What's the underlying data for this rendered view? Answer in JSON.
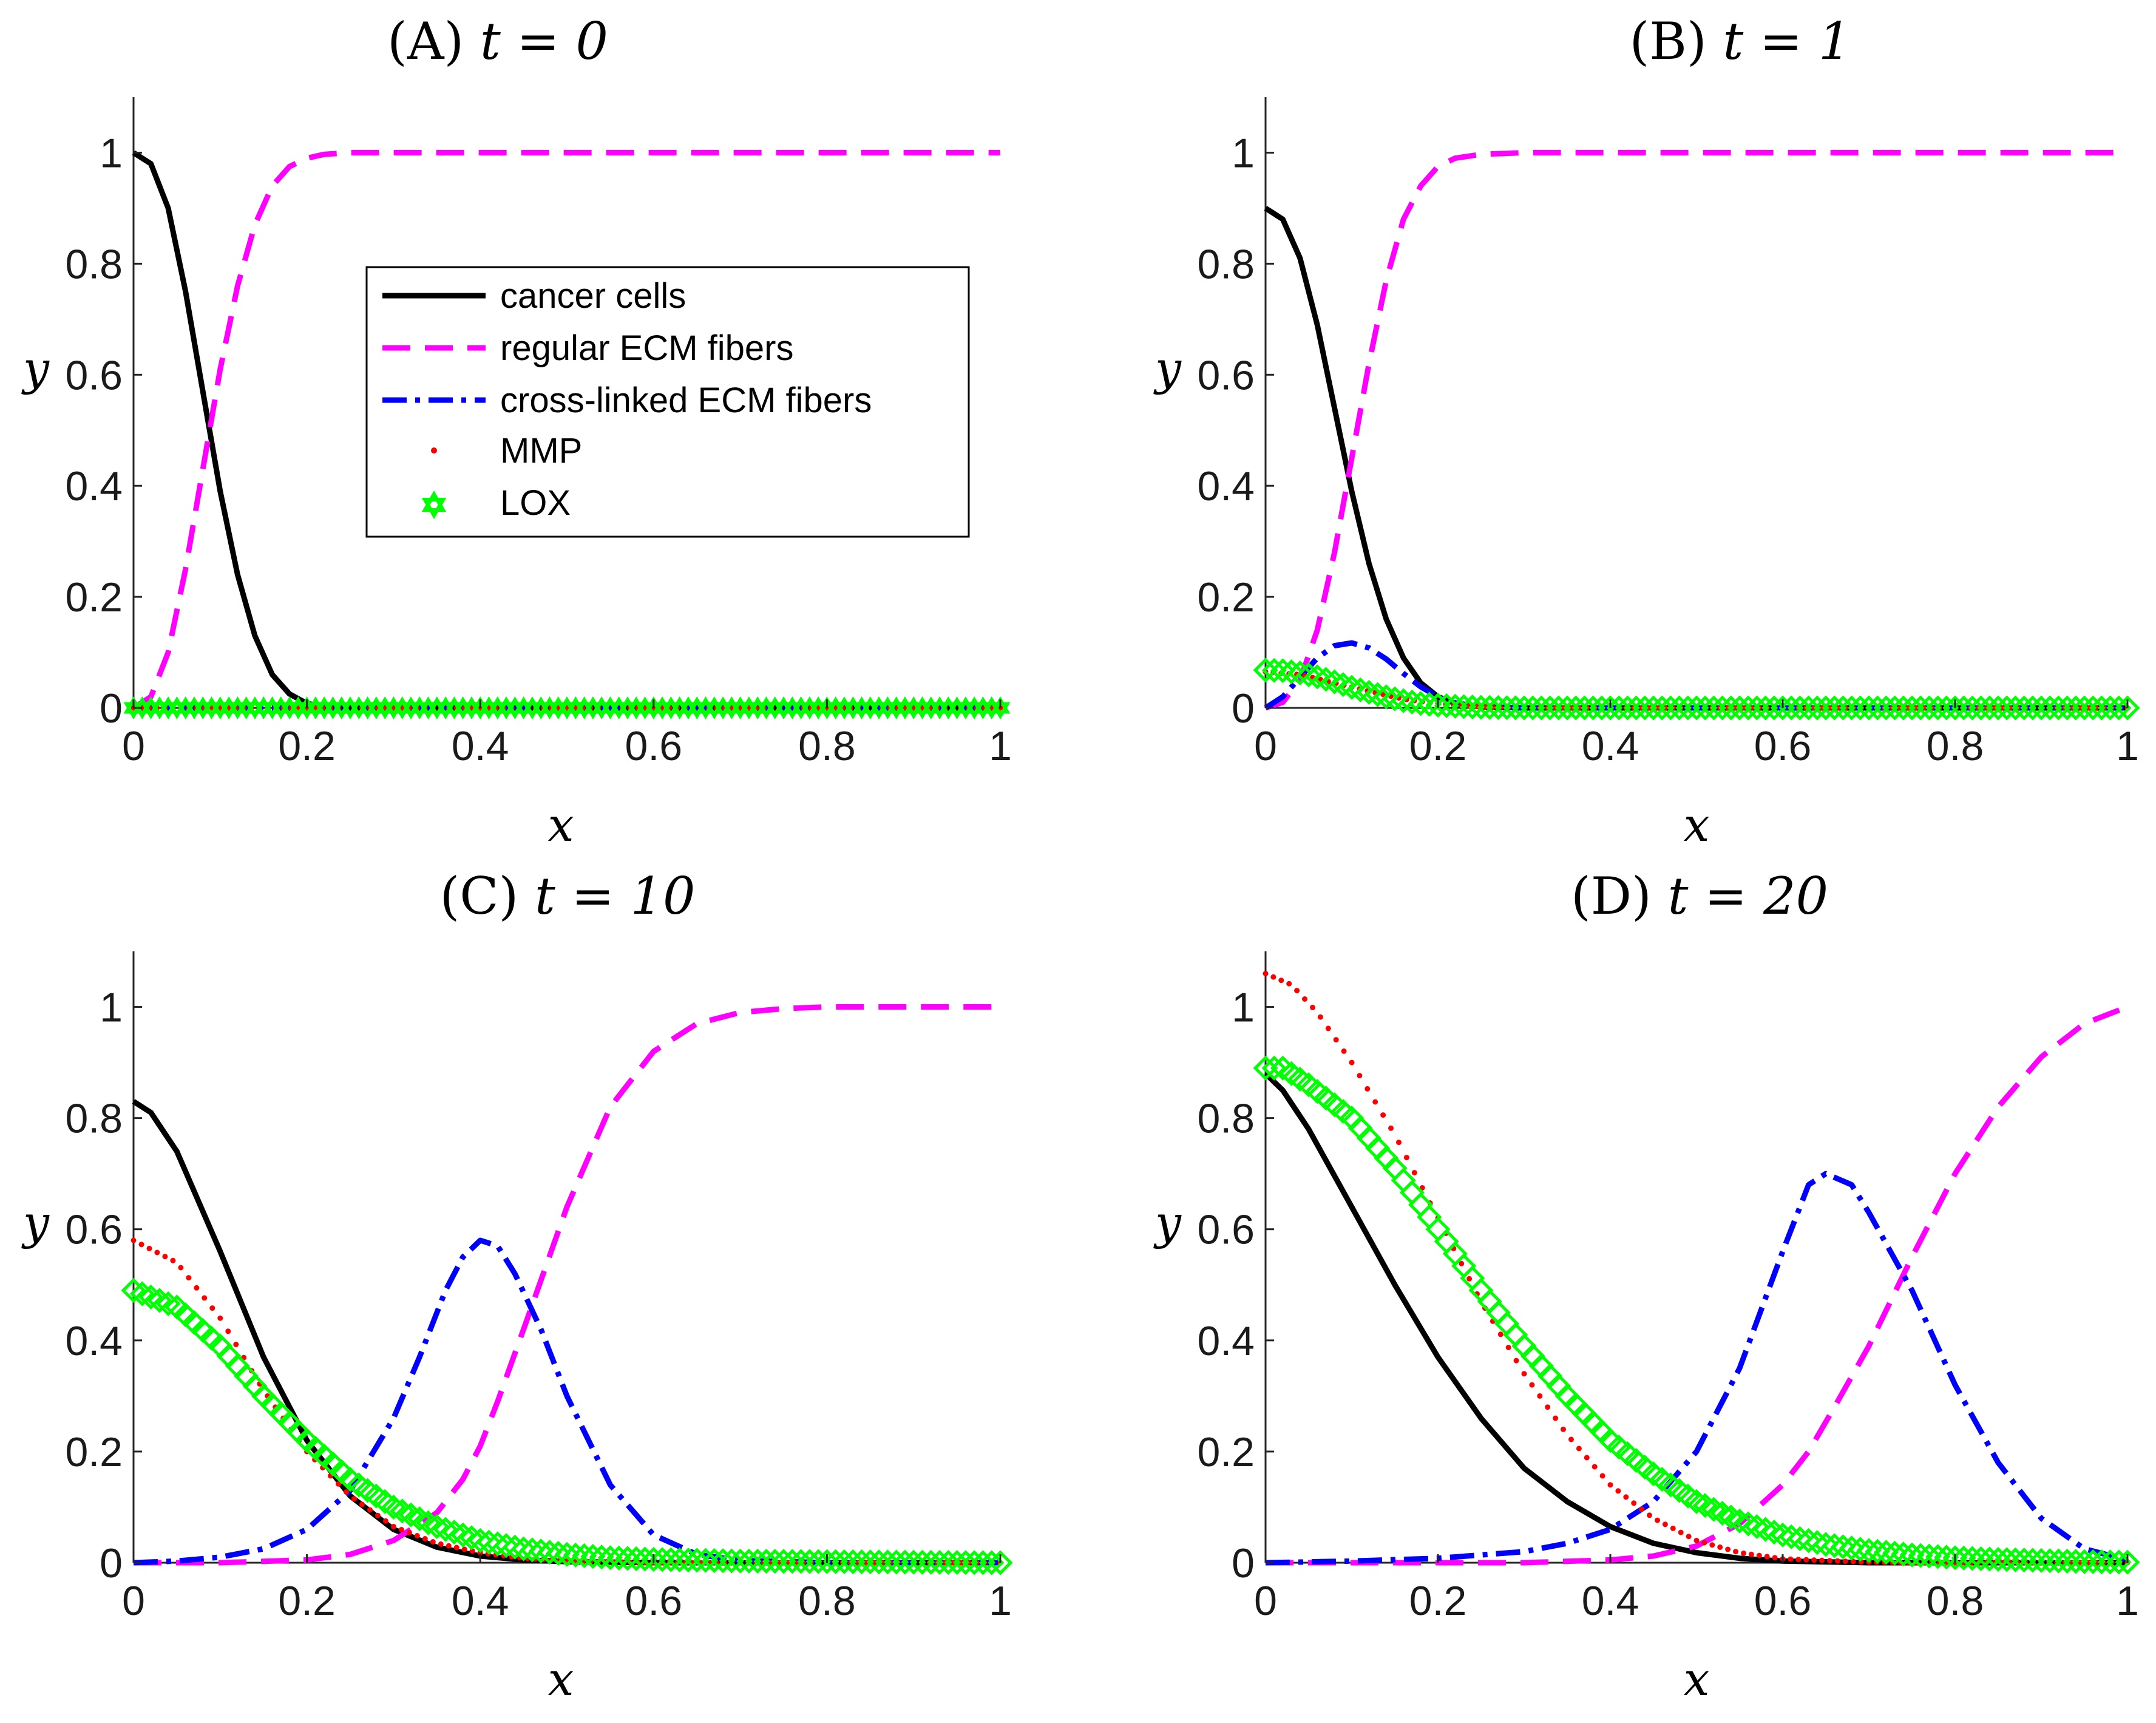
{
  "chart_data": [
    {
      "id": "A",
      "type": "line",
      "title": "(A)",
      "title_var": "t = 0",
      "xlabel": "x",
      "ylabel": "y",
      "xlim": [
        0,
        1
      ],
      "ylim": [
        0,
        1.1
      ],
      "xticks": [
        "0",
        "0.2",
        "0.4",
        "0.6",
        "0.8",
        "1"
      ],
      "yticks": [
        "0",
        "0.2",
        "0.4",
        "0.6",
        "0.8",
        "1"
      ],
      "legend": "inside-top-right",
      "series": [
        {
          "name": "cancer cells",
          "x": [
            0,
            0.02,
            0.04,
            0.06,
            0.08,
            0.1,
            0.12,
            0.14,
            0.16,
            0.18,
            0.2,
            0.22,
            0.25,
            0.3,
            0.4,
            0.6,
            0.8,
            1
          ],
          "y": [
            1.0,
            0.98,
            0.9,
            0.75,
            0.57,
            0.39,
            0.24,
            0.13,
            0.06,
            0.025,
            0.008,
            0.002,
            0,
            0,
            0,
            0,
            0,
            0
          ]
        },
        {
          "name": "regular ECM fibers",
          "x": [
            0,
            0.02,
            0.04,
            0.06,
            0.08,
            0.1,
            0.12,
            0.14,
            0.16,
            0.18,
            0.2,
            0.22,
            0.25,
            0.3,
            0.4,
            0.6,
            0.8,
            1
          ],
          "y": [
            0,
            0.02,
            0.1,
            0.25,
            0.43,
            0.61,
            0.76,
            0.87,
            0.94,
            0.975,
            0.99,
            0.997,
            1,
            1,
            1,
            1,
            1,
            1
          ]
        },
        {
          "name": "cross-linked ECM fibers",
          "x": [
            0,
            1
          ],
          "y": [
            0,
            0
          ]
        },
        {
          "name": "MMP",
          "x": [
            0,
            1
          ],
          "y": [
            0,
            0
          ]
        },
        {
          "name": "LOX",
          "x": [
            0,
            1
          ],
          "y": [
            0,
            0
          ]
        }
      ]
    },
    {
      "id": "B",
      "type": "line",
      "title": "(B)",
      "title_var": "t = 1",
      "xlabel": "x",
      "ylabel": "y",
      "xlim": [
        0,
        1
      ],
      "ylim": [
        0,
        1.1
      ],
      "xticks": [
        "0",
        "0.2",
        "0.4",
        "0.6",
        "0.8",
        "1"
      ],
      "yticks": [
        "0",
        "0.2",
        "0.4",
        "0.6",
        "0.8",
        "1"
      ],
      "series": [
        {
          "name": "cancer cells",
          "x": [
            0,
            0.02,
            0.04,
            0.06,
            0.08,
            0.1,
            0.12,
            0.14,
            0.16,
            0.18,
            0.2,
            0.22,
            0.25,
            0.3,
            0.4,
            0.6,
            0.8,
            1
          ],
          "y": [
            0.9,
            0.88,
            0.81,
            0.69,
            0.54,
            0.39,
            0.26,
            0.16,
            0.09,
            0.045,
            0.02,
            0.008,
            0.002,
            0,
            0,
            0,
            0,
            0
          ]
        },
        {
          "name": "regular ECM fibers",
          "x": [
            0,
            0.02,
            0.04,
            0.06,
            0.08,
            0.1,
            0.12,
            0.14,
            0.16,
            0.18,
            0.2,
            0.22,
            0.25,
            0.3,
            0.4,
            0.6,
            0.8,
            1
          ],
          "y": [
            0,
            0.01,
            0.05,
            0.14,
            0.28,
            0.45,
            0.62,
            0.77,
            0.88,
            0.94,
            0.975,
            0.99,
            0.997,
            1,
            1,
            1,
            1,
            1
          ]
        },
        {
          "name": "cross-linked ECM fibers",
          "x": [
            0,
            0.02,
            0.04,
            0.06,
            0.08,
            0.1,
            0.12,
            0.14,
            0.16,
            0.18,
            0.2,
            0.22,
            0.25,
            0.3,
            0.4,
            0.6,
            0.8,
            1
          ],
          "y": [
            0,
            0.02,
            0.055,
            0.09,
            0.112,
            0.117,
            0.108,
            0.088,
            0.062,
            0.038,
            0.02,
            0.009,
            0.002,
            0,
            0,
            0,
            0,
            0
          ]
        },
        {
          "name": "MMP",
          "x": [
            0,
            0.04,
            0.08,
            0.12,
            0.16,
            0.2,
            0.25,
            0.3,
            0.4,
            1
          ],
          "y": [
            0.065,
            0.06,
            0.045,
            0.03,
            0.016,
            0.007,
            0.002,
            0,
            0,
            0
          ]
        },
        {
          "name": "LOX",
          "x": [
            0,
            0.02,
            0.04,
            0.06,
            0.08,
            0.1,
            0.12,
            0.14,
            0.16,
            0.18,
            0.2,
            0.22,
            0.25,
            0.3,
            0.4,
            0.6,
            0.8,
            1
          ],
          "y": [
            0.068,
            0.067,
            0.063,
            0.056,
            0.047,
            0.037,
            0.028,
            0.02,
            0.013,
            0.008,
            0.005,
            0.003,
            0.001,
            0,
            0,
            0,
            0,
            0
          ]
        }
      ]
    },
    {
      "id": "C",
      "type": "line",
      "title": "(C)",
      "title_var": "t = 10",
      "xlabel": "x",
      "ylabel": "y",
      "xlim": [
        0,
        1
      ],
      "ylim": [
        0,
        1.1
      ],
      "xticks": [
        "0",
        "0.2",
        "0.4",
        "0.6",
        "0.8",
        "1"
      ],
      "yticks": [
        "0",
        "0.2",
        "0.4",
        "0.6",
        "0.8",
        "1"
      ],
      "series": [
        {
          "name": "cancer cells",
          "x": [
            0,
            0.02,
            0.05,
            0.1,
            0.15,
            0.2,
            0.25,
            0.3,
            0.35,
            0.4,
            0.45,
            0.5,
            0.6,
            0.8,
            1
          ],
          "y": [
            0.83,
            0.81,
            0.74,
            0.56,
            0.37,
            0.22,
            0.12,
            0.06,
            0.028,
            0.012,
            0.005,
            0.002,
            0,
            0,
            0
          ]
        },
        {
          "name": "regular ECM fibers",
          "x": [
            0,
            0.1,
            0.2,
            0.25,
            0.3,
            0.35,
            0.38,
            0.4,
            0.42,
            0.45,
            0.5,
            0.55,
            0.6,
            0.65,
            0.7,
            0.75,
            0.8,
            1
          ],
          "y": [
            0,
            0,
            0.005,
            0.015,
            0.04,
            0.09,
            0.15,
            0.21,
            0.29,
            0.42,
            0.64,
            0.82,
            0.92,
            0.97,
            0.99,
            0.997,
            1,
            1
          ]
        },
        {
          "name": "cross-linked ECM fibers",
          "x": [
            0,
            0.05,
            0.1,
            0.15,
            0.2,
            0.25,
            0.3,
            0.33,
            0.36,
            0.38,
            0.4,
            0.42,
            0.44,
            0.47,
            0.5,
            0.55,
            0.6,
            0.65,
            0.7,
            0.8,
            1
          ],
          "y": [
            0,
            0.003,
            0.01,
            0.025,
            0.06,
            0.13,
            0.26,
            0.37,
            0.49,
            0.55,
            0.58,
            0.57,
            0.52,
            0.42,
            0.3,
            0.14,
            0.05,
            0.015,
            0.004,
            0,
            0
          ]
        },
        {
          "name": "MMP",
          "x": [
            0,
            0.05,
            0.1,
            0.15,
            0.2,
            0.25,
            0.3,
            0.35,
            0.4,
            0.45,
            0.5,
            0.6,
            0.8,
            1
          ],
          "y": [
            0.58,
            0.54,
            0.44,
            0.31,
            0.2,
            0.12,
            0.065,
            0.035,
            0.018,
            0.008,
            0.003,
            0,
            0,
            0
          ]
        },
        {
          "name": "LOX",
          "x": [
            0,
            0.05,
            0.1,
            0.15,
            0.2,
            0.25,
            0.3,
            0.35,
            0.4,
            0.45,
            0.5,
            0.55,
            0.6,
            0.7,
            0.8,
            0.9,
            1
          ],
          "y": [
            0.49,
            0.46,
            0.39,
            0.3,
            0.22,
            0.15,
            0.1,
            0.065,
            0.04,
            0.025,
            0.015,
            0.009,
            0.006,
            0.003,
            0.002,
            0.001,
            0
          ]
        }
      ]
    },
    {
      "id": "D",
      "type": "line",
      "title": "(D)",
      "title_var": "t = 20",
      "xlabel": "x",
      "ylabel": "y",
      "xlim": [
        0,
        1
      ],
      "ylim": [
        0,
        1.1
      ],
      "xticks": [
        "0",
        "0.2",
        "0.4",
        "0.6",
        "0.8",
        "1"
      ],
      "yticks": [
        "0",
        "0.2",
        "0.4",
        "0.6",
        "0.8",
        "1"
      ],
      "series": [
        {
          "name": "cancer cells",
          "x": [
            0,
            0.02,
            0.05,
            0.1,
            0.15,
            0.2,
            0.25,
            0.3,
            0.35,
            0.4,
            0.45,
            0.5,
            0.55,
            0.6,
            0.7,
            0.8,
            1
          ],
          "y": [
            0.88,
            0.85,
            0.78,
            0.64,
            0.5,
            0.37,
            0.26,
            0.17,
            0.11,
            0.065,
            0.035,
            0.018,
            0.008,
            0.003,
            0,
            0,
            0
          ]
        },
        {
          "name": "regular ECM fibers",
          "x": [
            0,
            0.3,
            0.4,
            0.45,
            0.5,
            0.55,
            0.6,
            0.63,
            0.66,
            0.7,
            0.75,
            0.8,
            0.85,
            0.9,
            0.95,
            1
          ],
          "y": [
            0,
            0,
            0.005,
            0.012,
            0.03,
            0.07,
            0.14,
            0.2,
            0.28,
            0.39,
            0.55,
            0.7,
            0.82,
            0.91,
            0.97,
            1.0
          ]
        },
        {
          "name": "cross-linked ECM fibers",
          "x": [
            0,
            0.1,
            0.2,
            0.3,
            0.35,
            0.4,
            0.45,
            0.5,
            0.55,
            0.6,
            0.63,
            0.65,
            0.68,
            0.7,
            0.75,
            0.8,
            0.85,
            0.9,
            0.95,
            1
          ],
          "y": [
            0,
            0.003,
            0.008,
            0.02,
            0.035,
            0.06,
            0.11,
            0.2,
            0.35,
            0.56,
            0.68,
            0.7,
            0.68,
            0.63,
            0.49,
            0.32,
            0.18,
            0.08,
            0.025,
            0.005
          ]
        },
        {
          "name": "MMP",
          "x": [
            0,
            0.03,
            0.06,
            0.1,
            0.15,
            0.2,
            0.25,
            0.3,
            0.35,
            0.4,
            0.45,
            0.5,
            0.55,
            0.6,
            0.7,
            0.8,
            1
          ],
          "y": [
            1.06,
            1.04,
            0.99,
            0.9,
            0.77,
            0.62,
            0.47,
            0.34,
            0.23,
            0.14,
            0.08,
            0.04,
            0.018,
            0.007,
            0.001,
            0,
            0
          ]
        },
        {
          "name": "LOX",
          "x": [
            0,
            0.02,
            0.05,
            0.1,
            0.15,
            0.2,
            0.25,
            0.3,
            0.35,
            0.4,
            0.45,
            0.5,
            0.55,
            0.6,
            0.65,
            0.7,
            0.75,
            0.8,
            0.85,
            0.9,
            0.95,
            1
          ],
          "y": [
            0.89,
            0.89,
            0.86,
            0.8,
            0.71,
            0.6,
            0.49,
            0.39,
            0.3,
            0.22,
            0.16,
            0.11,
            0.075,
            0.05,
            0.033,
            0.022,
            0.014,
            0.009,
            0.006,
            0.004,
            0.002,
            0.001
          ]
        }
      ]
    }
  ],
  "legend_items": [
    {
      "name": "cancer cells",
      "icon": "solid-line-icon"
    },
    {
      "name": "regular ECM fibers",
      "icon": "dashed-line-icon"
    },
    {
      "name": "cross-linked ECM fibers",
      "icon": "dash-dot-line-icon"
    },
    {
      "name": "MMP",
      "icon": "dot-marker-icon"
    },
    {
      "name": "LOX",
      "icon": "hexagram-marker-icon"
    }
  ],
  "series_colors": {
    "cancer cells": "#000000",
    "regular ECM fibers": "#ff00ff",
    "cross-linked ECM fibers": "#0000ff",
    "MMP": "#ff0000",
    "LOX": "#00ff00"
  }
}
